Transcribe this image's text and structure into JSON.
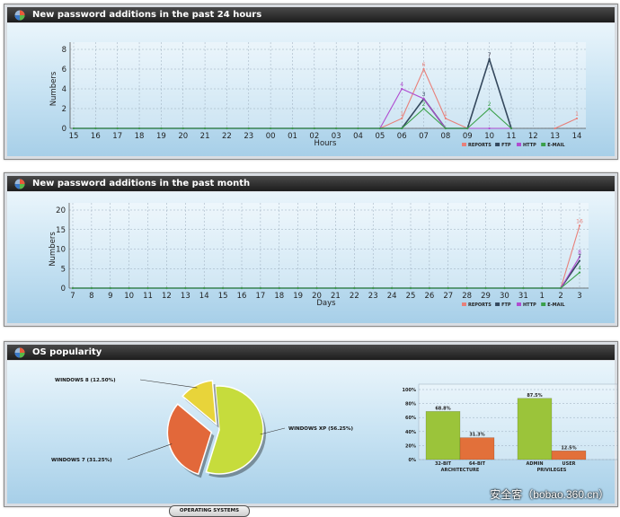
{
  "panels": {
    "day": {
      "title": "New password additions in the past 24 hours"
    },
    "month": {
      "title": "New password additions in the past month"
    },
    "os": {
      "title": "OS popularity",
      "button_label": "OPERATING SYSTEMS"
    }
  },
  "watermark": "安全客（bobao.360.cn）",
  "colors": {
    "reports": "#e8807a",
    "ftp": "#34495e",
    "http": "#b04cd0",
    "email": "#3aa04a"
  },
  "chart_data": [
    {
      "type": "line",
      "title": "New password additions in the past 24 hours",
      "xlabel": "Hours",
      "ylabel": "Numbers",
      "ylim": [
        0,
        8
      ],
      "yticks": [
        0,
        2,
        4,
        6,
        8
      ],
      "categories": [
        "15",
        "16",
        "17",
        "18",
        "19",
        "20",
        "21",
        "22",
        "23",
        "00",
        "01",
        "02",
        "03",
        "04",
        "05",
        "06",
        "07",
        "08",
        "09",
        "10",
        "11",
        "12",
        "13",
        "14"
      ],
      "legend": "bottom-right",
      "series": [
        {
          "name": "REPORTS",
          "color": "#e8807a",
          "values": [
            0,
            0,
            0,
            0,
            0,
            0,
            0,
            0,
            0,
            0,
            0,
            0,
            0,
            0,
            0,
            1,
            6,
            1,
            0,
            7,
            0,
            null,
            0,
            1
          ]
        },
        {
          "name": "FTP",
          "color": "#34495e",
          "values": [
            0,
            0,
            0,
            0,
            0,
            0,
            0,
            0,
            0,
            0,
            0,
            0,
            0,
            0,
            0,
            0,
            3,
            0,
            0,
            7,
            0,
            null,
            null,
            null
          ]
        },
        {
          "name": "HTTP",
          "color": "#b04cd0",
          "values": [
            0,
            0,
            0,
            0,
            0,
            0,
            0,
            0,
            0,
            0,
            0,
            0,
            0,
            0,
            0,
            4,
            3,
            0,
            0,
            0,
            0,
            null,
            null,
            null
          ]
        },
        {
          "name": "E-MAIL",
          "color": "#3aa04a",
          "values": [
            0,
            0,
            0,
            0,
            0,
            0,
            0,
            0,
            0,
            0,
            0,
            0,
            0,
            0,
            0,
            0,
            2,
            0,
            0,
            2,
            0,
            null,
            null,
            null
          ]
        }
      ],
      "data_labels": [
        {
          "series": 0,
          "index": 15,
          "text": "1"
        },
        {
          "series": 0,
          "index": 16,
          "text": "6"
        },
        {
          "series": 0,
          "index": 17,
          "text": "1"
        },
        {
          "series": 0,
          "index": 19,
          "text": "7"
        },
        {
          "series": 0,
          "index": 23,
          "text": "1"
        },
        {
          "series": 1,
          "index": 16,
          "text": "3"
        },
        {
          "series": 1,
          "index": 19,
          "text": "7"
        },
        {
          "series": 2,
          "index": 15,
          "text": "4"
        },
        {
          "series": 3,
          "index": 16,
          "text": "2"
        },
        {
          "series": 3,
          "index": 19,
          "text": "2"
        }
      ]
    },
    {
      "type": "line",
      "title": "New password additions in the past month",
      "xlabel": "Days",
      "ylabel": "Numbers",
      "ylim": [
        0,
        20
      ],
      "yticks": [
        0,
        5,
        10,
        15,
        20
      ],
      "categories": [
        "7",
        "8",
        "9",
        "10",
        "11",
        "12",
        "13",
        "14",
        "15",
        "16",
        "17",
        "18",
        "19",
        "20",
        "21",
        "22",
        "23",
        "24",
        "25",
        "26",
        "27",
        "28",
        "29",
        "30",
        "31",
        "1",
        "2",
        "3"
      ],
      "legend": "bottom-right",
      "series": [
        {
          "name": "REPORTS",
          "color": "#e8807a",
          "values": [
            0,
            0,
            0,
            0,
            0,
            0,
            0,
            0,
            0,
            0,
            0,
            0,
            0,
            0,
            0,
            0,
            0,
            0,
            0,
            0,
            0,
            0,
            0,
            0,
            0,
            0,
            0,
            16
          ]
        },
        {
          "name": "FTP",
          "color": "#34495e",
          "values": [
            0,
            0,
            0,
            0,
            0,
            0,
            0,
            0,
            0,
            0,
            0,
            0,
            0,
            0,
            0,
            0,
            0,
            0,
            0,
            0,
            0,
            0,
            0,
            0,
            0,
            0,
            0,
            7
          ]
        },
        {
          "name": "HTTP",
          "color": "#b04cd0",
          "values": [
            0,
            0,
            0,
            0,
            0,
            0,
            0,
            0,
            0,
            0,
            0,
            0,
            0,
            0,
            0,
            0,
            0,
            0,
            0,
            0,
            0,
            0,
            0,
            0,
            0,
            0,
            0,
            8
          ]
        },
        {
          "name": "E-MAIL",
          "color": "#3aa04a",
          "values": [
            0,
            0,
            0,
            0,
            0,
            0,
            0,
            0,
            0,
            0,
            0,
            0,
            0,
            0,
            0,
            0,
            0,
            0,
            0,
            0,
            0,
            0,
            0,
            0,
            0,
            0,
            0,
            4
          ]
        }
      ],
      "data_labels": [
        {
          "series": 0,
          "index": 27,
          "text": "16"
        },
        {
          "series": 2,
          "index": 27,
          "text": "8"
        },
        {
          "series": 1,
          "index": 27,
          "text": "7"
        },
        {
          "series": 3,
          "index": 27,
          "text": "4"
        }
      ]
    },
    {
      "type": "pie",
      "slices": [
        {
          "label": "WINDOWS XP (56.25%)",
          "value": 56.25,
          "color": "#c6dc3c"
        },
        {
          "label": "WINDOWS 7 (31.25%)",
          "value": 31.25,
          "color": "#e2683a"
        },
        {
          "label": "WINDOWS 8 (12.50%)",
          "value": 12.5,
          "color": "#e8d43a"
        }
      ]
    },
    {
      "type": "bar",
      "yticks": [
        "0%",
        "20%",
        "40%",
        "60%",
        "80%",
        "100%"
      ],
      "ylim": [
        0,
        100
      ],
      "groups": [
        {
          "name": "ARCHITECTURE",
          "bars": [
            {
              "label": "32-BIT",
              "value": 68.8,
              "text": "68.8%",
              "color": "#9bc43a"
            },
            {
              "label": "64-BIT",
              "value": 31.3,
              "text": "31.3%",
              "color": "#e2703a"
            }
          ]
        },
        {
          "name": "PRIVILEGES",
          "bars": [
            {
              "label": "ADMIN",
              "value": 87.5,
              "text": "87.5%",
              "color": "#9bc43a"
            },
            {
              "label": "USER",
              "value": 12.5,
              "text": "12.5%",
              "color": "#e2703a"
            }
          ]
        }
      ]
    }
  ]
}
